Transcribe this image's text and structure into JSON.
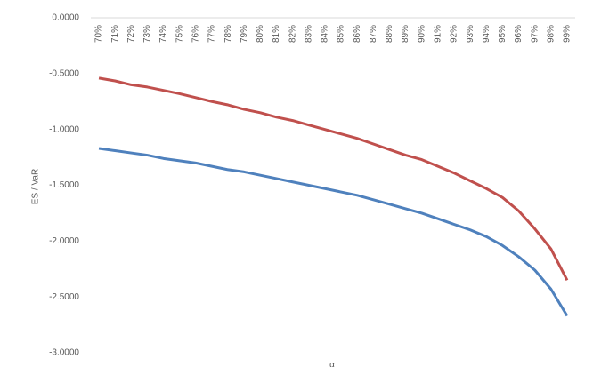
{
  "chart_data": {
    "type": "line",
    "y_label": "ES / VaR",
    "x_label": "α",
    "categories": [
      "70%",
      "71%",
      "72%",
      "73%",
      "74%",
      "75%",
      "76%",
      "77%",
      "78%",
      "79%",
      "80%",
      "81%",
      "82%",
      "83%",
      "84%",
      "85%",
      "86%",
      "87%",
      "88%",
      "89%",
      "90%",
      "91%",
      "92%",
      "93%",
      "94%",
      "95%",
      "96%",
      "97%",
      "98%",
      "99%"
    ],
    "series": [
      {
        "color": "#c0504d",
        "values": [
          -0.54,
          -0.565,
          -0.6,
          -0.62,
          -0.65,
          -0.68,
          -0.715,
          -0.75,
          -0.78,
          -0.82,
          -0.85,
          -0.89,
          -0.92,
          -0.96,
          -1.0,
          -1.04,
          -1.08,
          -1.13,
          -1.18,
          -1.23,
          -1.27,
          -1.33,
          -1.39,
          -1.46,
          -1.53,
          -1.61,
          -1.73,
          -1.89,
          -2.07,
          -2.35
        ]
      },
      {
        "color": "#4f81bd",
        "values": [
          -1.17,
          -1.19,
          -1.21,
          -1.23,
          -1.26,
          -1.28,
          -1.3,
          -1.33,
          -1.36,
          -1.38,
          -1.41,
          -1.44,
          -1.47,
          -1.5,
          -1.53,
          -1.56,
          -1.59,
          -1.63,
          -1.67,
          -1.71,
          -1.75,
          -1.8,
          -1.85,
          -1.9,
          -1.96,
          -2.04,
          -2.14,
          -2.26,
          -2.43,
          -2.67
        ]
      }
    ],
    "ylim": [
      -3,
      0
    ],
    "yticks": [
      {
        "value": 0,
        "label": "0.0000"
      },
      {
        "value": -0.5,
        "label": "-0.5000"
      },
      {
        "value": -1,
        "label": "-1.0000"
      },
      {
        "value": -1.5,
        "label": "-1.5000"
      },
      {
        "value": -2,
        "label": "-2.0000"
      },
      {
        "value": -2.5,
        "label": "-2.5000"
      },
      {
        "value": -3,
        "label": "-3.0000"
      }
    ],
    "grid": false
  }
}
